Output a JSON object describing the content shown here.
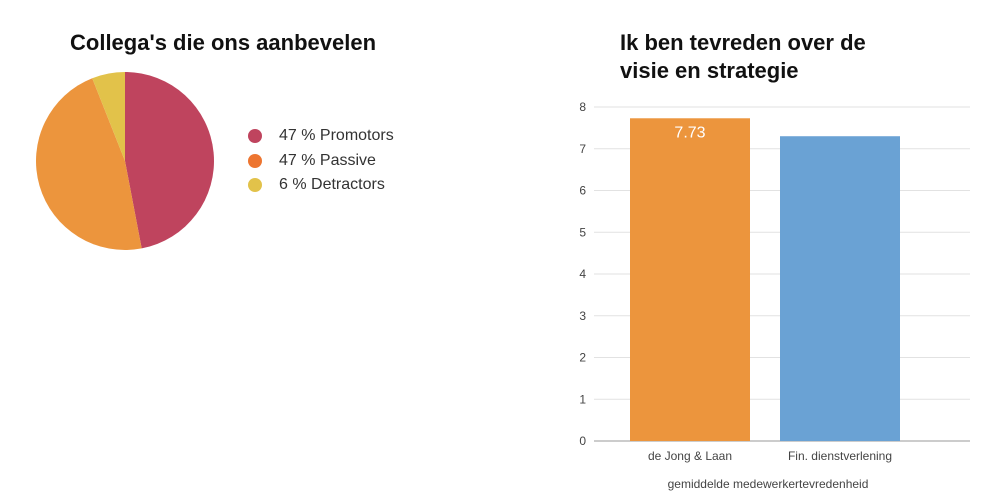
{
  "chart_data": [
    {
      "type": "pie",
      "title": "Collega's die ons aanbevelen",
      "slices": [
        {
          "label": "47 % Promotors",
          "value": 47,
          "color": "#bf445e"
        },
        {
          "label": "47 % Passive",
          "value": 47,
          "color": "#ec953d"
        },
        {
          "label": "6 % Detractors",
          "value": 6,
          "color": "#e2c24a"
        }
      ],
      "legend_dot_colors": [
        "#bf445e",
        "#ed7530",
        "#e2c24a"
      ],
      "legend_position": "right"
    },
    {
      "type": "bar",
      "title": "Ik ben tevreden over de visie en strategie",
      "title_lines": [
        "Ik ben tevreden over de",
        "visie en strategie"
      ],
      "categories": [
        "de Jong & Laan",
        "Fin. dienstverlening"
      ],
      "values": [
        7.73,
        7.3
      ],
      "colors": [
        "#ec953d",
        "#6aa2d4"
      ],
      "data_labels": [
        "7.73",
        ""
      ],
      "xlabel": "gemiddelde medewerkertevredenheid",
      "ylabel": "",
      "ylim": [
        0,
        8
      ],
      "yticks": [
        "0",
        "1",
        "2",
        "3",
        "4",
        "5",
        "6",
        "7",
        "8"
      ],
      "grid": true
    }
  ]
}
